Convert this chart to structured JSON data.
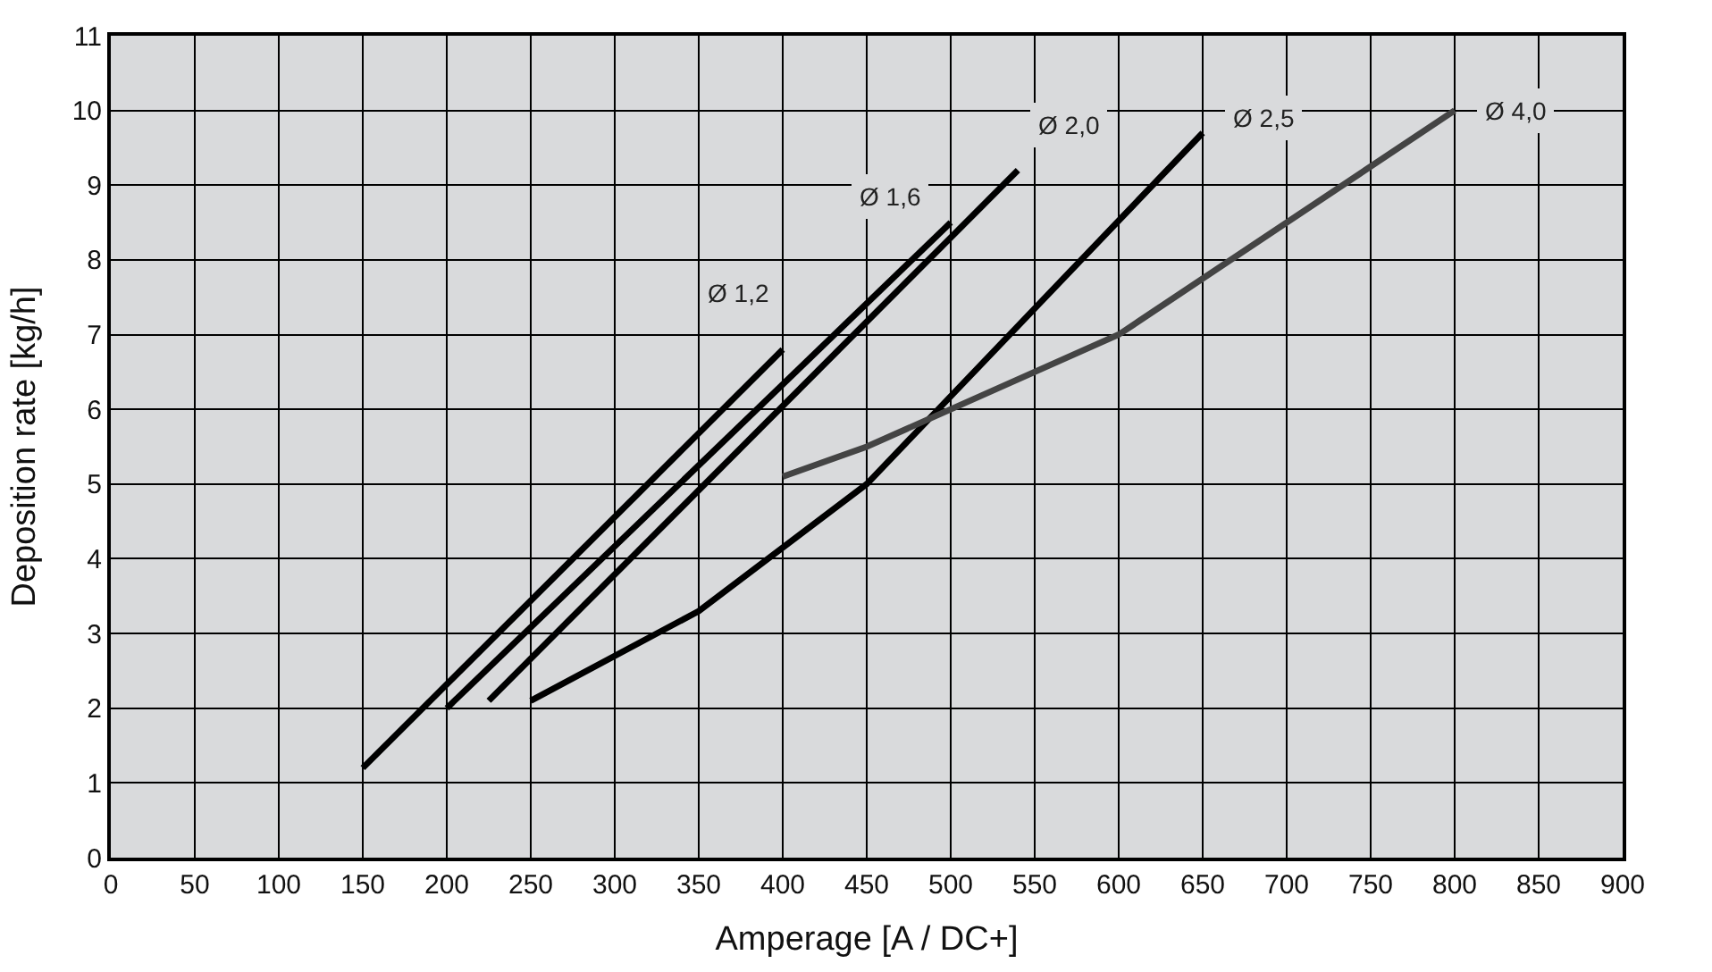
{
  "chart_data": {
    "type": "line",
    "xlabel": "Amperage [A / DC+]",
    "ylabel": "Deposition rate [kg/h]",
    "xlim": [
      0,
      900
    ],
    "xticks": [
      0,
      50,
      100,
      150,
      200,
      250,
      300,
      350,
      400,
      450,
      500,
      550,
      600,
      650,
      700,
      750,
      800,
      850,
      900
    ],
    "ylim": [
      0,
      11
    ],
    "yticks": [
      0,
      1,
      2,
      3,
      4,
      5,
      6,
      7,
      8,
      9,
      10,
      11
    ],
    "grid": true,
    "legend": false,
    "marker": "none",
    "line_style": "solid",
    "series": [
      {
        "name": "Ø 1,2",
        "color": "#000000",
        "x": [
          150,
          400
        ],
        "values": [
          1.2,
          6.8
        ]
      },
      {
        "name": "Ø 1,6",
        "color": "#000000",
        "x": [
          200,
          500
        ],
        "values": [
          2.0,
          8.5
        ]
      },
      {
        "name": "Ø 2,0",
        "color": "#000000",
        "x": [
          225,
          540
        ],
        "values": [
          2.1,
          9.2
        ]
      },
      {
        "name": "Ø 2,5",
        "color": "#000000",
        "x": [
          250,
          350,
          450,
          650
        ],
        "values": [
          2.1,
          3.3,
          5.0,
          9.7
        ]
      },
      {
        "name": "Ø 4,0",
        "color": "#444444",
        "x": [
          400,
          450,
          600,
          800
        ],
        "values": [
          5.1,
          5.5,
          7.0,
          10.0
        ]
      }
    ]
  }
}
